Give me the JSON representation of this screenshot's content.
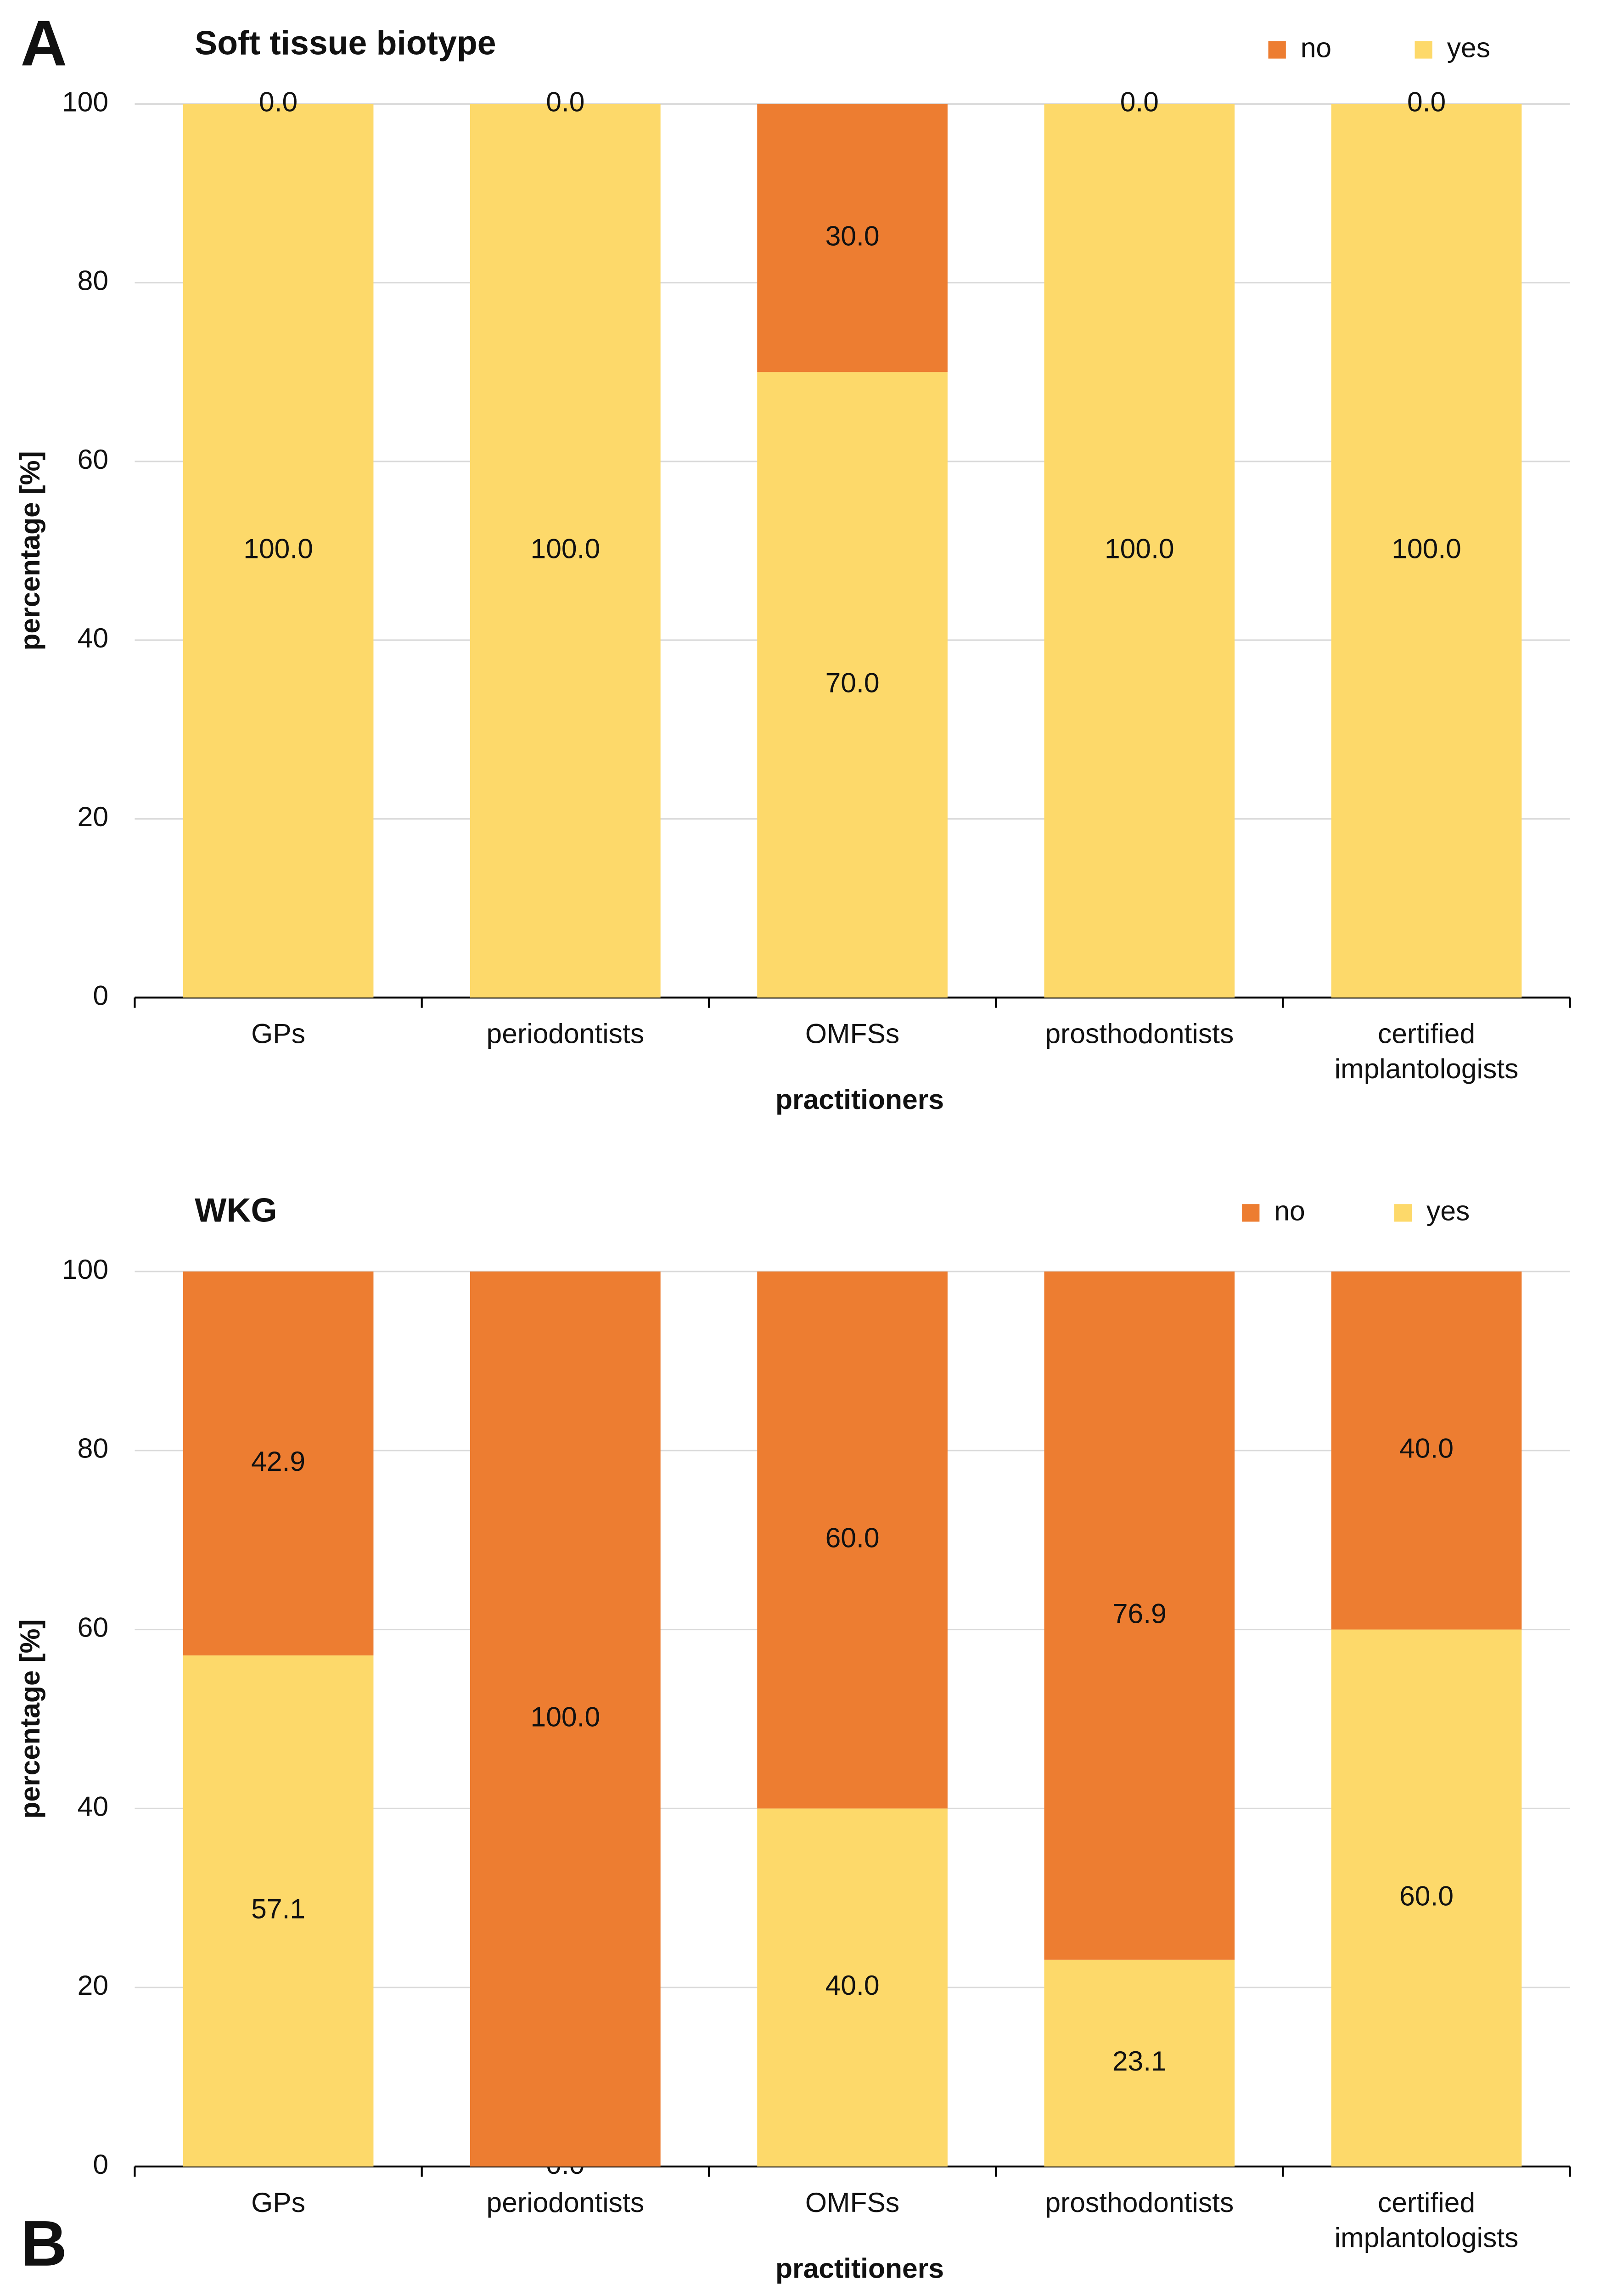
{
  "chart_data": [
    {
      "type": "bar",
      "panel_label": "A",
      "title": "Soft tissue biotype",
      "x_label": "practitioners",
      "y_label": "percentage  [%]",
      "categories": [
        "GPs",
        "periodontists",
        "OMFSs",
        "prosthodontists",
        "certified implantologists"
      ],
      "series": [
        {
          "name": "no",
          "color": "#ed7d31",
          "values": [
            0,
            0,
            30,
            0,
            0
          ],
          "value_labels": [
            "0.0",
            "0.0",
            "30.0",
            "0.0",
            "0.0"
          ]
        },
        {
          "name": "yes",
          "color": "#fdd96a",
          "values": [
            100,
            100,
            70,
            100,
            100
          ],
          "value_labels": [
            "100.0",
            "100.0",
            "70.0",
            "100.0",
            "100.0"
          ]
        }
      ],
      "ylim": [
        0,
        100
      ],
      "yticks": [
        0,
        20,
        40,
        60,
        80,
        100
      ],
      "grid": true,
      "stacked": true,
      "legend": "top-right"
    },
    {
      "type": "bar",
      "panel_label": "B",
      "title": "WKG",
      "x_label": "practitioners",
      "y_label": "percentage  [%]",
      "categories": [
        "GPs",
        "periodontists",
        "OMFSs",
        "prosthodontists",
        "certified implantologists"
      ],
      "series": [
        {
          "name": "no",
          "color": "#ed7d31",
          "values": [
            42.9,
            100,
            60,
            76.9,
            40
          ],
          "value_labels": [
            "42.9",
            "100.0",
            "60.0",
            "76.9",
            "40.0"
          ]
        },
        {
          "name": "yes",
          "color": "#fdd96a",
          "values": [
            57.1,
            0,
            40,
            23.1,
            60
          ],
          "value_labels": [
            "57.1",
            "0.0",
            "40.0",
            "23.1",
            "60.0"
          ]
        }
      ],
      "ylim": [
        0,
        100
      ],
      "yticks": [
        0,
        20,
        40,
        60,
        80,
        100
      ],
      "grid": true,
      "stacked": true,
      "legend": "top-right"
    }
  ]
}
